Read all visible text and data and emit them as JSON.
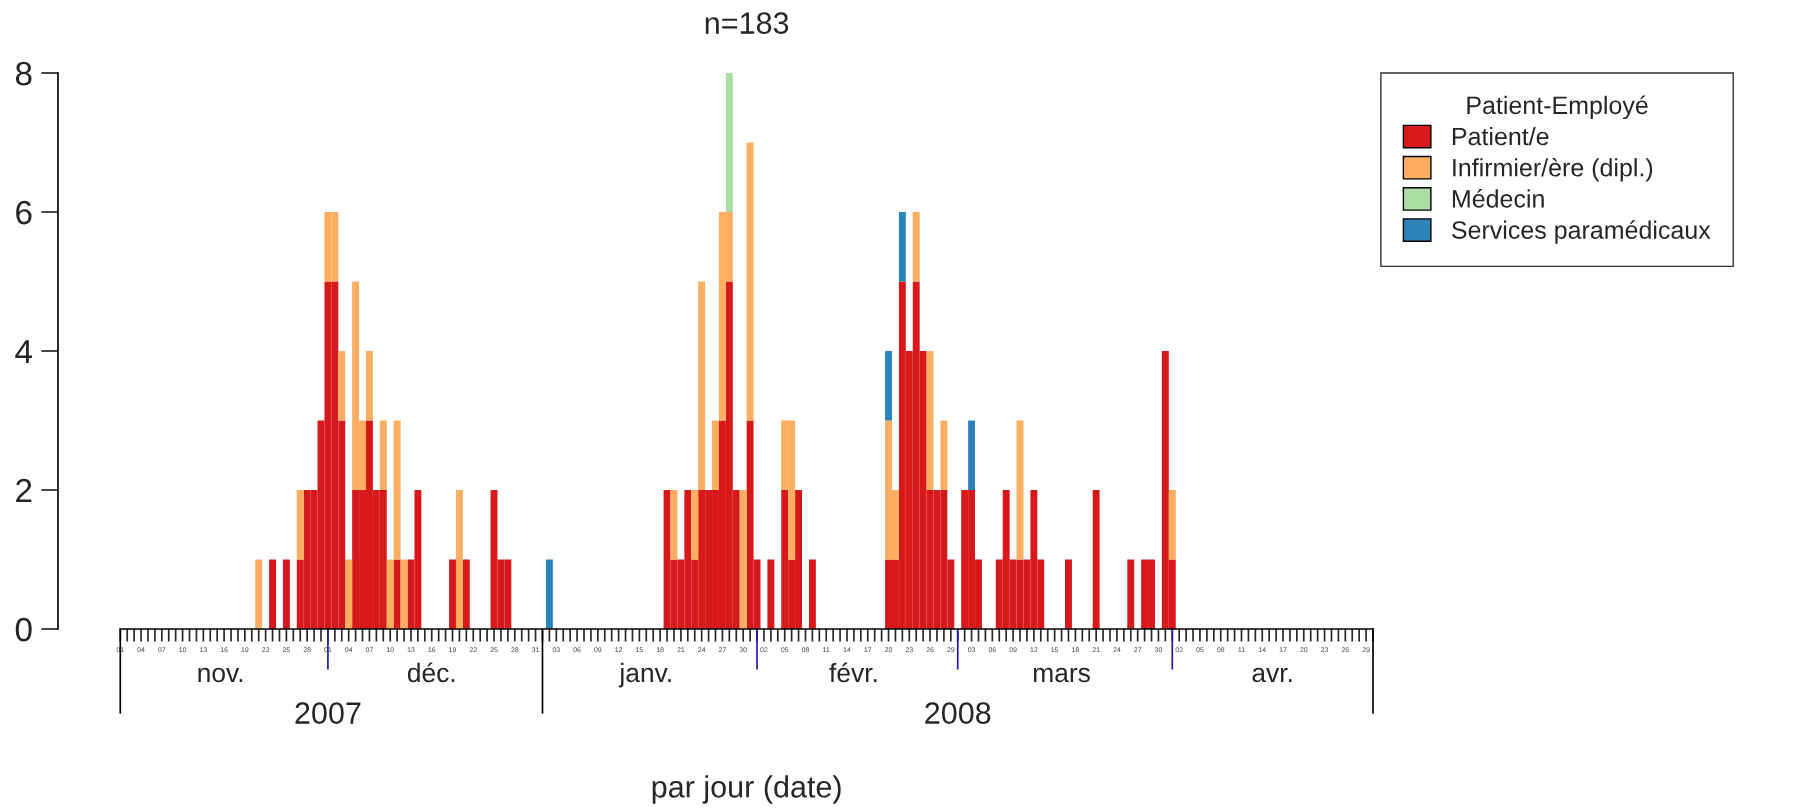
{
  "chart_data": {
    "type": "bar",
    "title": "n=183",
    "xlabel": "par jour (date)",
    "legend_title": "Patient-Employé",
    "legend": "right",
    "stacked": true,
    "annotations": [
      "nov.",
      "déc.",
      "janv.",
      "févr.",
      "mars",
      "avr.",
      "2007",
      "2008"
    ],
    "x": [
      "2007-11-21",
      "2007-11-23",
      "2007-11-25",
      "2007-11-27",
      "2007-11-28",
      "2007-11-29",
      "2007-11-30",
      "2007-12-01",
      "2007-12-02",
      "2007-12-03",
      "2007-12-04",
      "2007-12-05",
      "2007-12-06",
      "2007-12-07",
      "2007-12-08",
      "2007-12-09",
      "2007-12-10",
      "2007-12-11",
      "2007-12-12",
      "2007-12-13",
      "2007-12-14",
      "2007-12-19",
      "2007-12-20",
      "2007-12-21",
      "2007-12-25",
      "2007-12-26",
      "2007-12-27",
      "2008-01-02",
      "2008-01-19",
      "2008-01-20",
      "2008-01-21",
      "2008-01-22",
      "2008-01-23",
      "2008-01-24",
      "2008-01-25",
      "2008-01-26",
      "2008-01-27",
      "2008-01-28",
      "2008-01-29",
      "2008-01-30",
      "2008-01-31",
      "2008-02-01",
      "2008-02-03",
      "2008-02-05",
      "2008-02-06",
      "2008-02-07",
      "2008-02-09",
      "2008-02-20",
      "2008-02-21",
      "2008-02-22",
      "2008-02-23",
      "2008-02-24",
      "2008-02-25",
      "2008-02-26",
      "2008-02-27",
      "2008-02-28",
      "2008-02-29",
      "2008-03-02",
      "2008-03-03",
      "2008-03-04",
      "2008-03-07",
      "2008-03-08",
      "2008-03-09",
      "2008-03-10",
      "2008-03-11",
      "2008-03-12",
      "2008-03-13",
      "2008-03-17",
      "2008-03-21",
      "2008-03-26",
      "2008-03-28",
      "2008-03-29",
      "2008-03-31",
      "2008-04-01"
    ],
    "series": [
      {
        "name": "Patient/e",
        "color": "#d7191c",
        "values": [
          null,
          1,
          1,
          1,
          2,
          2,
          3,
          5,
          5,
          3,
          null,
          2,
          2,
          3,
          2,
          2,
          null,
          1,
          null,
          1,
          2,
          1,
          null,
          1,
          2,
          1,
          1,
          null,
          2,
          1,
          1,
          2,
          1,
          2,
          2,
          2,
          3,
          5,
          2,
          null,
          3,
          1,
          1,
          2,
          1,
          2,
          1,
          1,
          1,
          5,
          4,
          5,
          4,
          2,
          2,
          2,
          1,
          2,
          2,
          1,
          1,
          2,
          1,
          1,
          1,
          2,
          1,
          1,
          2,
          1,
          1,
          1,
          4,
          1
        ]
      },
      {
        "name": "Infirmier/ère (dipl.)",
        "color": "#fdae61",
        "values": [
          1,
          null,
          null,
          1,
          null,
          null,
          null,
          1,
          1,
          1,
          1,
          3,
          1,
          1,
          null,
          1,
          1,
          2,
          1,
          null,
          null,
          null,
          2,
          null,
          null,
          null,
          null,
          null,
          null,
          1,
          null,
          null,
          1,
          3,
          null,
          1,
          3,
          1,
          null,
          2,
          4,
          null,
          null,
          1,
          2,
          null,
          null,
          2,
          1,
          null,
          null,
          1,
          null,
          2,
          null,
          1,
          null,
          null,
          null,
          null,
          null,
          null,
          null,
          2,
          null,
          null,
          null,
          null,
          null,
          null,
          null,
          null,
          null,
          1
        ]
      },
      {
        "name": "Médecin",
        "color": "#abdda4",
        "values": [
          null,
          null,
          null,
          null,
          null,
          null,
          null,
          null,
          null,
          null,
          null,
          null,
          null,
          null,
          null,
          null,
          null,
          null,
          null,
          null,
          null,
          null,
          null,
          null,
          null,
          null,
          null,
          null,
          null,
          null,
          null,
          null,
          null,
          null,
          null,
          null,
          null,
          2,
          null,
          null,
          null,
          null,
          null,
          null,
          null,
          null,
          null,
          null,
          null,
          null,
          null,
          null,
          null,
          null,
          null,
          null,
          null,
          null,
          null,
          null,
          null,
          null,
          null,
          null,
          null,
          null,
          null,
          null,
          null,
          null,
          null,
          null,
          null,
          null
        ]
      },
      {
        "name": "Services paramédicaux",
        "color": "#2b83ba",
        "values": [
          null,
          null,
          null,
          null,
          null,
          null,
          null,
          null,
          null,
          null,
          null,
          null,
          null,
          null,
          null,
          null,
          null,
          null,
          null,
          null,
          null,
          null,
          null,
          null,
          null,
          null,
          null,
          1,
          null,
          null,
          null,
          null,
          null,
          null,
          null,
          null,
          null,
          null,
          null,
          null,
          null,
          null,
          null,
          null,
          null,
          null,
          null,
          1,
          null,
          1,
          null,
          null,
          null,
          null,
          null,
          null,
          null,
          null,
          1,
          null,
          null,
          null,
          null,
          null,
          null,
          null,
          null,
          null,
          null,
          null,
          null,
          null,
          null,
          null
        ]
      }
    ],
    "ylim": [
      0,
      8
    ],
    "yticks": [
      0,
      2,
      4,
      6,
      8
    ],
    "xlim": [
      "2007-10-23",
      "2008-04-30"
    ],
    "xticks": [
      {
        "value": "2007-11-01",
        "label": "01"
      },
      {
        "value": "2007-11-02",
        "label": null
      },
      {
        "value": "2007-11-03",
        "label": null
      },
      {
        "value": "2007-11-04",
        "label": "04"
      },
      {
        "value": "2007-11-05",
        "label": null
      },
      {
        "value": "2007-11-06",
        "label": null
      },
      {
        "value": "2007-11-07",
        "label": "07"
      },
      {
        "value": "2007-11-08",
        "label": null
      },
      {
        "value": "2007-11-09",
        "label": null
      },
      {
        "value": "2007-11-10",
        "label": "10"
      },
      {
        "value": "2007-11-11",
        "label": null
      },
      {
        "value": "2007-11-12",
        "label": null
      },
      {
        "value": "2007-11-13",
        "label": "13"
      },
      {
        "value": "2007-11-14",
        "label": null
      },
      {
        "value": "2007-11-15",
        "label": null
      },
      {
        "value": "2007-11-16",
        "label": "16"
      },
      {
        "value": "2007-11-17",
        "label": null
      },
      {
        "value": "2007-11-18",
        "label": null
      },
      {
        "value": "2007-11-19",
        "label": "19"
      },
      {
        "value": "2007-11-20",
        "label": null
      },
      {
        "value": "2007-11-21",
        "label": null
      },
      {
        "value": "2007-11-22",
        "label": "22"
      },
      {
        "value": "2007-11-23",
        "label": null
      },
      {
        "value": "2007-11-24",
        "label": null
      },
      {
        "value": "2007-11-25",
        "label": "25"
      },
      {
        "value": "2007-11-26",
        "label": null
      },
      {
        "value": "2007-11-27",
        "label": null
      },
      {
        "value": "2007-11-28",
        "label": "28"
      },
      {
        "value": "2007-11-29",
        "label": null
      },
      {
        "value": "2007-11-30",
        "label": null
      },
      {
        "value": "2007-12-01",
        "label": "01"
      },
      {
        "value": "2007-12-02",
        "label": null
      },
      {
        "value": "2007-12-03",
        "label": null
      },
      {
        "value": "2007-12-04",
        "label": "04"
      },
      {
        "value": "2007-12-05",
        "label": null
      },
      {
        "value": "2007-12-06",
        "label": null
      },
      {
        "value": "2007-12-07",
        "label": "07"
      },
      {
        "value": "2007-12-08",
        "label": null
      },
      {
        "value": "2007-12-09",
        "label": null
      },
      {
        "value": "2007-12-10",
        "label": "10"
      },
      {
        "value": "2007-12-11",
        "label": null
      },
      {
        "value": "2007-12-12",
        "label": null
      },
      {
        "value": "2007-12-13",
        "label": "13"
      },
      {
        "value": "2007-12-14",
        "label": null
      },
      {
        "value": "2007-12-15",
        "label": null
      },
      {
        "value": "2007-12-16",
        "label": "16"
      },
      {
        "value": "2007-12-17",
        "label": null
      },
      {
        "value": "2007-12-18",
        "label": null
      },
      {
        "value": "2007-12-19",
        "label": "19"
      },
      {
        "value": "2007-12-20",
        "label": null
      },
      {
        "value": "2007-12-21",
        "label": null
      },
      {
        "value": "2007-12-22",
        "label": "22"
      },
      {
        "value": "2007-12-23",
        "label": null
      },
      {
        "value": "2007-12-24",
        "label": null
      },
      {
        "value": "2007-12-25",
        "label": "25"
      },
      {
        "value": "2007-12-26",
        "label": null
      },
      {
        "value": "2007-12-27",
        "label": null
      },
      {
        "value": "2007-12-28",
        "label": "28"
      },
      {
        "value": "2007-12-29",
        "label": null
      },
      {
        "value": "2007-12-30",
        "label": null
      },
      {
        "value": "2007-12-31",
        "label": "31"
      },
      {
        "value": "2008-01-01",
        "label": null
      },
      {
        "value": "2008-01-02",
        "label": null
      },
      {
        "value": "2008-01-03",
        "label": "03"
      },
      {
        "value": "2008-01-04",
        "label": null
      },
      {
        "value": "2008-01-05",
        "label": null
      },
      {
        "value": "2008-01-06",
        "label": "06"
      },
      {
        "value": "2008-01-07",
        "label": null
      },
      {
        "value": "2008-01-08",
        "label": null
      },
      {
        "value": "2008-01-09",
        "label": "09"
      },
      {
        "value": "2008-01-10",
        "label": null
      },
      {
        "value": "2008-01-11",
        "label": null
      },
      {
        "value": "2008-01-12",
        "label": "12"
      },
      {
        "value": "2008-01-13",
        "label": null
      },
      {
        "value": "2008-01-14",
        "label": null
      },
      {
        "value": "2008-01-15",
        "label": "15"
      },
      {
        "value": "2008-01-16",
        "label": null
      },
      {
        "value": "2008-01-17",
        "label": null
      },
      {
        "value": "2008-01-18",
        "label": "18"
      },
      {
        "value": "2008-01-19",
        "label": null
      },
      {
        "value": "2008-01-20",
        "label": null
      },
      {
        "value": "2008-01-21",
        "label": "21"
      },
      {
        "value": "2008-01-22",
        "label": null
      },
      {
        "value": "2008-01-23",
        "label": null
      },
      {
        "value": "2008-01-24",
        "label": "24"
      },
      {
        "value": "2008-01-25",
        "label": null
      },
      {
        "value": "2008-01-26",
        "label": null
      },
      {
        "value": "2008-01-27",
        "label": "27"
      },
      {
        "value": "2008-01-28",
        "label": null
      },
      {
        "value": "2008-01-29",
        "label": null
      },
      {
        "value": "2008-01-30",
        "label": "30"
      },
      {
        "value": "2008-01-31",
        "label": null
      },
      {
        "value": "2008-02-01",
        "label": null
      },
      {
        "value": "2008-02-02",
        "label": "02"
      },
      {
        "value": "2008-02-03",
        "label": null
      },
      {
        "value": "2008-02-04",
        "label": null
      },
      {
        "value": "2008-02-05",
        "label": "05"
      },
      {
        "value": "2008-02-06",
        "label": null
      },
      {
        "value": "2008-02-07",
        "label": null
      },
      {
        "value": "2008-02-08",
        "label": "08"
      },
      {
        "value": "2008-02-09",
        "label": null
      },
      {
        "value": "2008-02-10",
        "label": null
      },
      {
        "value": "2008-02-11",
        "label": "11"
      },
      {
        "value": "2008-02-12",
        "label": null
      },
      {
        "value": "2008-02-13",
        "label": null
      },
      {
        "value": "2008-02-14",
        "label": "14"
      },
      {
        "value": "2008-02-15",
        "label": null
      },
      {
        "value": "2008-02-16",
        "label": null
      },
      {
        "value": "2008-02-17",
        "label": "17"
      },
      {
        "value": "2008-02-18",
        "label": null
      },
      {
        "value": "2008-02-19",
        "label": null
      },
      {
        "value": "2008-02-20",
        "label": "20"
      },
      {
        "value": "2008-02-21",
        "label": null
      },
      {
        "value": "2008-02-22",
        "label": null
      },
      {
        "value": "2008-02-23",
        "label": "23"
      },
      {
        "value": "2008-02-24",
        "label": null
      },
      {
        "value": "2008-02-25",
        "label": null
      },
      {
        "value": "2008-02-26",
        "label": "26"
      },
      {
        "value": "2008-02-27",
        "label": null
      },
      {
        "value": "2008-02-28",
        "label": null
      },
      {
        "value": "2008-02-29",
        "label": "29"
      },
      {
        "value": "2008-03-01",
        "label": null
      },
      {
        "value": "2008-03-02",
        "label": null
      },
      {
        "value": "2008-03-03",
        "label": "03"
      },
      {
        "value": "2008-03-04",
        "label": null
      },
      {
        "value": "2008-03-05",
        "label": null
      },
      {
        "value": "2008-03-06",
        "label": "06"
      },
      {
        "value": "2008-03-07",
        "label": null
      },
      {
        "value": "2008-03-08",
        "label": null
      },
      {
        "value": "2008-03-09",
        "label": "09"
      },
      {
        "value": "2008-03-10",
        "label": null
      },
      {
        "value": "2008-03-11",
        "label": null
      },
      {
        "value": "2008-03-12",
        "label": "12"
      },
      {
        "value": "2008-03-13",
        "label": null
      },
      {
        "value": "2008-03-14",
        "label": null
      },
      {
        "value": "2008-03-15",
        "label": "15"
      },
      {
        "value": "2008-03-16",
        "label": null
      },
      {
        "value": "2008-03-17",
        "label": null
      },
      {
        "value": "2008-03-18",
        "label": "18"
      },
      {
        "value": "2008-03-19",
        "label": null
      },
      {
        "value": "2008-03-20",
        "label": null
      },
      {
        "value": "2008-03-21",
        "label": "21"
      },
      {
        "value": "2008-03-22",
        "label": null
      },
      {
        "value": "2008-03-23",
        "label": null
      },
      {
        "value": "2008-03-24",
        "label": "24"
      },
      {
        "value": "2008-03-25",
        "label": null
      },
      {
        "value": "2008-03-26",
        "label": null
      },
      {
        "value": "2008-03-27",
        "label": "27"
      },
      {
        "value": "2008-03-28",
        "label": null
      },
      {
        "value": "2008-03-29",
        "label": null
      },
      {
        "value": "2008-03-30",
        "label": "30"
      },
      {
        "value": "2008-03-31",
        "label": null
      },
      {
        "value": "2008-04-01",
        "label": null
      },
      {
        "value": "2008-04-02",
        "label": "02"
      },
      {
        "value": "2008-04-03",
        "label": null
      },
      {
        "value": "2008-04-04",
        "label": null
      },
      {
        "value": "2008-04-05",
        "label": "05"
      },
      {
        "value": "2008-04-06",
        "label": null
      },
      {
        "value": "2008-04-07",
        "label": null
      },
      {
        "value": "2008-04-08",
        "label": "08"
      },
      {
        "value": "2008-04-09",
        "label": null
      },
      {
        "value": "2008-04-10",
        "label": null
      },
      {
        "value": "2008-04-11",
        "label": "11"
      },
      {
        "value": "2008-04-12",
        "label": null
      },
      {
        "value": "2008-04-13",
        "label": null
      },
      {
        "value": "2008-04-14",
        "label": "14"
      },
      {
        "value": "2008-04-15",
        "label": null
      },
      {
        "value": "2008-04-16",
        "label": null
      },
      {
        "value": "2008-04-17",
        "label": "17"
      },
      {
        "value": "2008-04-18",
        "label": null
      },
      {
        "value": "2008-04-19",
        "label": null
      },
      {
        "value": "2008-04-20",
        "label": "20"
      },
      {
        "value": "2008-04-21",
        "label": null
      },
      {
        "value": "2008-04-22",
        "label": null
      },
      {
        "value": "2008-04-23",
        "label": "23"
      },
      {
        "value": "2008-04-24",
        "label": null
      },
      {
        "value": "2008-04-25",
        "label": null
      },
      {
        "value": "2008-04-26",
        "label": "26"
      },
      {
        "value": "2008-04-27",
        "label": null
      },
      {
        "value": "2008-04-28",
        "label": null
      },
      {
        "value": "2008-04-29",
        "label": "29"
      },
      {
        "value": "2008-04-30",
        "label": null
      }
    ]
  }
}
